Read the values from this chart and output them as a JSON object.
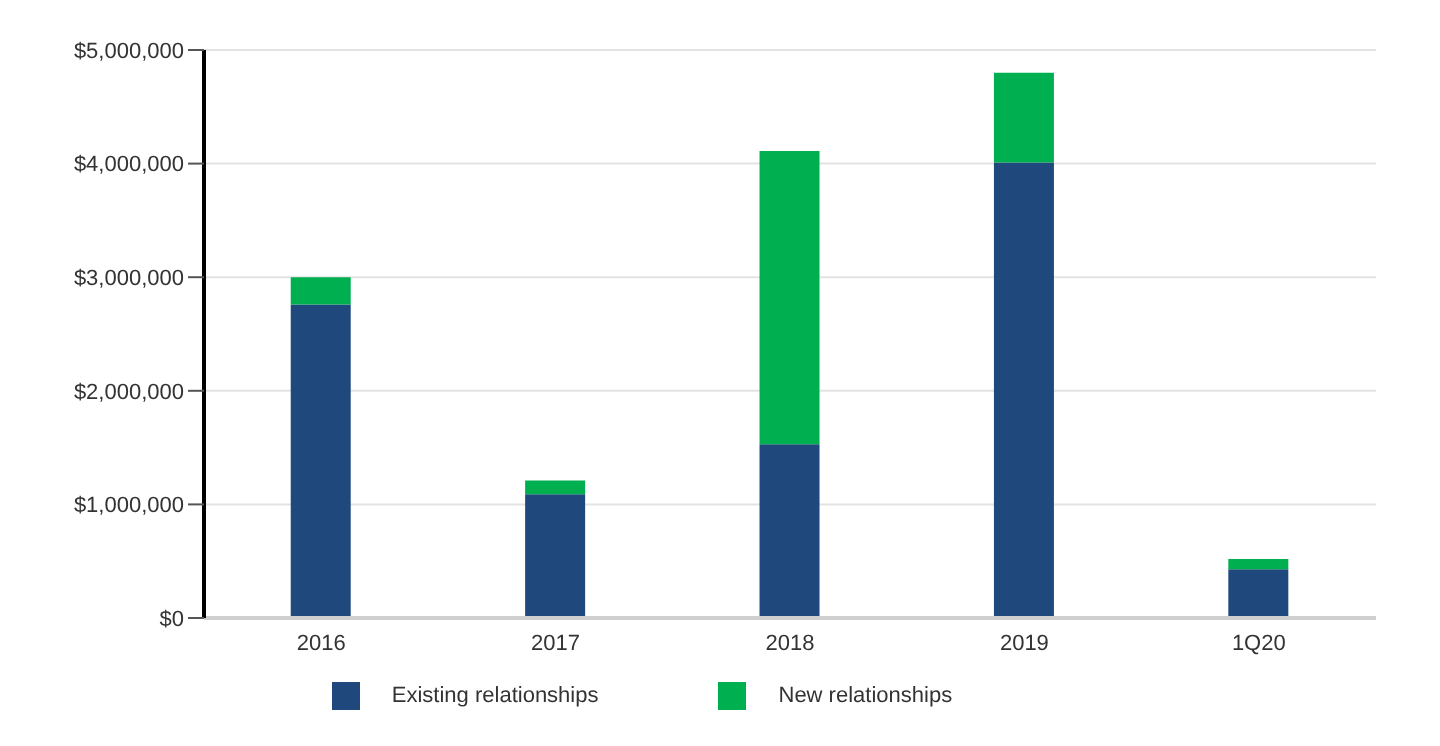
{
  "chart_data": {
    "type": "bar",
    "stacked": true,
    "categories": [
      "2016",
      "2017",
      "2018",
      "2019",
      "1Q20"
    ],
    "series": [
      {
        "name": "Existing relationships",
        "color": "#1f497d",
        "values": [
          2760000,
          1090000,
          1530000,
          4010000,
          430000
        ]
      },
      {
        "name": "New relationships",
        "color": "#00b050",
        "values": [
          240000,
          120000,
          2580000,
          790000,
          90000
        ]
      }
    ],
    "ylim": [
      0,
      5000000
    ],
    "yticks": [
      {
        "value": 0,
        "label": "$0"
      },
      {
        "value": 1000000,
        "label": "$1,000,000"
      },
      {
        "value": 2000000,
        "label": "$2,000,000"
      },
      {
        "value": 3000000,
        "label": "$3,000,000"
      },
      {
        "value": 4000000,
        "label": "$4,000,000"
      },
      {
        "value": 5000000,
        "label": "$5,000,000"
      }
    ],
    "grid": "y",
    "legend": "bottom"
  }
}
